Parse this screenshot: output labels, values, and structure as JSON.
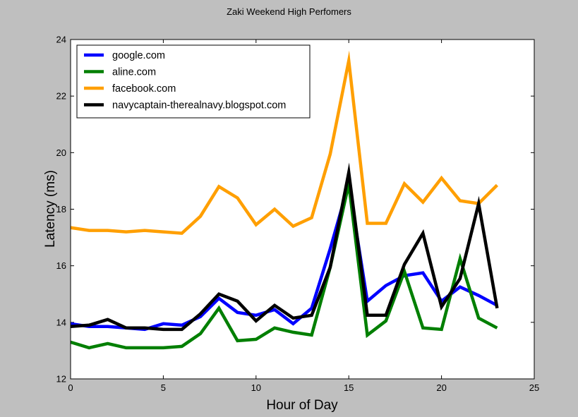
{
  "chart_data": {
    "type": "line",
    "title": "Zaki Weekend High Perfomers",
    "xlabel": "Hour of Day",
    "ylabel": "Latency (ms)",
    "xlim": [
      0,
      25
    ],
    "ylim": [
      12,
      24
    ],
    "xticks": [
      0,
      5,
      10,
      15,
      20,
      25
    ],
    "yticks": [
      12,
      14,
      16,
      18,
      20,
      22,
      24
    ],
    "grid": false,
    "legend_position": "top-left",
    "x": [
      0,
      1,
      2,
      3,
      4,
      5,
      6,
      7,
      8,
      9,
      10,
      11,
      12,
      13,
      14,
      15,
      16,
      17,
      18,
      19,
      20,
      21,
      22,
      23
    ],
    "series": [
      {
        "name": "google.com",
        "color": "#0000ff",
        "values": [
          13.95,
          13.85,
          13.85,
          13.8,
          13.75,
          13.95,
          13.9,
          14.2,
          14.85,
          14.35,
          14.25,
          14.45,
          13.95,
          14.5,
          16.6,
          18.9,
          14.75,
          15.3,
          15.65,
          15.75,
          14.75,
          15.25,
          14.95,
          14.6
        ]
      },
      {
        "name": "aline.com",
        "color": "#007f00",
        "values": [
          13.3,
          13.1,
          13.25,
          13.1,
          13.1,
          13.1,
          13.15,
          13.6,
          14.5,
          13.35,
          13.4,
          13.8,
          13.65,
          13.55,
          15.95,
          18.9,
          13.55,
          14.05,
          15.8,
          13.8,
          13.75,
          16.25,
          14.15,
          13.8
        ]
      },
      {
        "name": "facebook.com",
        "color": "#ff9f00",
        "values": [
          17.35,
          17.25,
          17.25,
          17.2,
          17.25,
          17.2,
          17.15,
          17.75,
          18.8,
          18.4,
          17.45,
          18.0,
          17.4,
          17.7,
          19.95,
          23.25,
          17.5,
          17.5,
          18.9,
          18.25,
          19.1,
          18.3,
          18.2,
          18.85
        ]
      },
      {
        "name": "navycaptain-therealnavy.blogspot.com",
        "color": "#000000",
        "values": [
          13.85,
          13.9,
          14.1,
          13.8,
          13.8,
          13.75,
          13.75,
          14.3,
          15.0,
          14.75,
          14.05,
          14.6,
          14.15,
          14.25,
          15.95,
          19.3,
          14.25,
          14.25,
          16.05,
          17.15,
          14.55,
          15.55,
          18.2,
          14.5
        ]
      }
    ]
  }
}
